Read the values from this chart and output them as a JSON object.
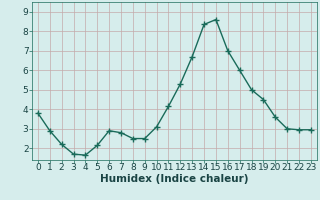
{
  "x": [
    0,
    1,
    2,
    3,
    4,
    5,
    6,
    7,
    8,
    9,
    10,
    11,
    12,
    13,
    14,
    15,
    16,
    17,
    18,
    19,
    20,
    21,
    22,
    23
  ],
  "y": [
    3.8,
    2.9,
    2.2,
    1.7,
    1.65,
    2.15,
    2.9,
    2.8,
    2.5,
    2.5,
    3.1,
    4.15,
    5.3,
    6.7,
    8.35,
    8.6,
    7.0,
    6.0,
    5.0,
    4.5,
    3.6,
    3.0,
    2.95,
    2.95
  ],
  "line_color": "#1a6b5a",
  "marker": "+",
  "marker_size": 4,
  "bg_color": "#d6edec",
  "grid_color": "#c4aaaa",
  "xlabel": "Humidex (Indice chaleur)",
  "xlabel_fontsize": 7.5,
  "xlim": [
    -0.5,
    23.5
  ],
  "ylim": [
    1.4,
    9.5
  ],
  "yticks": [
    2,
    3,
    4,
    5,
    6,
    7,
    8,
    9
  ],
  "xticks": [
    0,
    1,
    2,
    3,
    4,
    5,
    6,
    7,
    8,
    9,
    10,
    11,
    12,
    13,
    14,
    15,
    16,
    17,
    18,
    19,
    20,
    21,
    22,
    23
  ],
  "tick_fontsize": 6.5,
  "line_width": 1.0
}
